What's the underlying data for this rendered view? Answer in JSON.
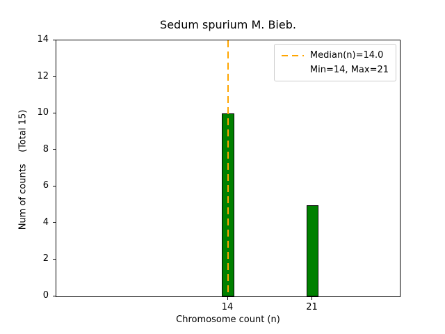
{
  "chart_data": {
    "type": "bar",
    "title": "Sedum spurium M. Bieb.",
    "xlabel": "Chromosome count (n)",
    "ylabel": "Num of counts    (Total 15)",
    "categories": [
      14,
      21
    ],
    "values": [
      10,
      5
    ],
    "total_counts": 15,
    "median": 14.0,
    "min": 14,
    "max": 21,
    "xlim": [
      -0.23,
      28.23
    ],
    "ylim": [
      0,
      14
    ],
    "yticks": [
      0,
      2,
      4,
      6,
      8,
      10,
      12,
      14
    ],
    "xticks": [
      14,
      21
    ],
    "bar_color": "#008000",
    "bar_edge_color": "#000000",
    "median_line_color": "#ffa500",
    "legend": {
      "position": "upper right",
      "entries": [
        "Median(n)=14.0",
        "Min=14, Max=21"
      ]
    },
    "grid": false
  }
}
